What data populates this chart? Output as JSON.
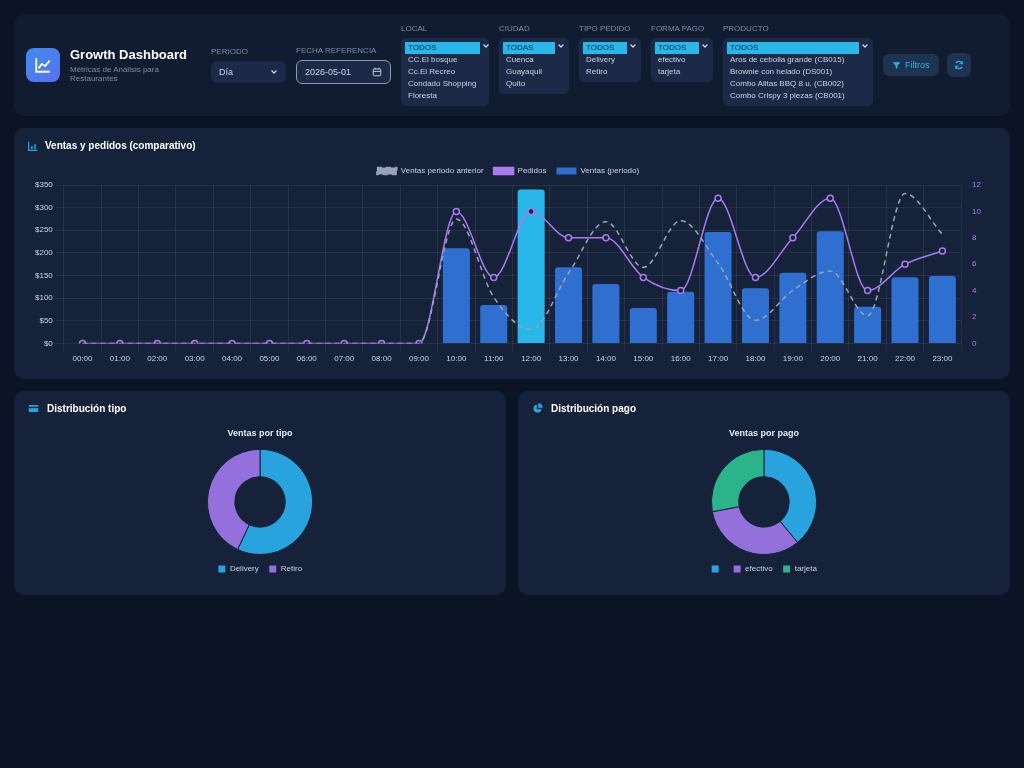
{
  "chart_data": [
    {
      "type": "other",
      "title": "Growth Dashboard",
      "subtitle": "Métricas de Análisis para Restaurantes"
    },
    {
      "type": "other",
      "title": "PERIODO",
      "annotations": [
        "Día"
      ]
    },
    {
      "type": "other",
      "title": "FECHA REFERENCIA",
      "annotations": [
        "2026-05-01"
      ]
    },
    {
      "type": "other",
      "title": "LOCAL",
      "annotations": [
        "TODOS",
        "CC.El bosque",
        "Cc.El Recreo",
        "Condado Shopping",
        "Floresta"
      ]
    },
    {
      "type": "other",
      "title": "CIUDAD",
      "annotations": [
        "TODAS",
        "Cuenca",
        "Guayaquil",
        "Quito"
      ]
    },
    {
      "type": "other",
      "title": "TIPO PEDIDO",
      "annotations": [
        "TODOS",
        "Delivery",
        "Retiro"
      ]
    },
    {
      "type": "other",
      "title": "FORMA PAGO",
      "annotations": [
        "TODOS",
        "efectivo",
        "tarjeta"
      ]
    },
    {
      "type": "other",
      "title": "PRODUCTO",
      "annotations": [
        "TODOS",
        "Aros de cebolla grande (CB015)",
        "Brownie con helado (DS001)",
        "Combo Alitas BBQ 8 u. (CB002)",
        "Combo Crispy 3 piezas (CB001)"
      ]
    },
    {
      "type": "other",
      "annotations": [
        "Filtros"
      ]
    },
    {
      "type": "bar",
      "title": "Ventas y pedidos (comparativo)",
      "categories": [
        "00:00",
        "01:00",
        "02:00",
        "03:00",
        "04:00",
        "05:00",
        "06:00",
        "07:00",
        "08:00",
        "09:00",
        "10:00",
        "11:00",
        "12:00",
        "13:00",
        "14:00",
        "15:00",
        "16:00",
        "17:00",
        "18:00",
        "19:00",
        "20:00",
        "21:00",
        "22:00",
        "23:00"
      ],
      "series": [
        {
          "name": "Ventas periodo anterior",
          "type": "line",
          "color": "#9aa3b5",
          "line_style": "dashed",
          "marker": "none",
          "values": [
            0,
            0,
            0,
            0,
            0,
            0,
            0,
            0,
            0,
            0,
            275,
            102,
            31,
            155,
            269,
            168,
            271,
            177,
            51,
            117,
            160,
            61,
            331,
            241
          ]
        },
        {
          "name": "Pedidos",
          "type": "line",
          "axis": "y2",
          "color": "#a67cf0",
          "line_style": "solid",
          "marker": "circle",
          "values": [
            0,
            0,
            0,
            0,
            0,
            0,
            0,
            0,
            0,
            0,
            10,
            5,
            10,
            8,
            8,
            5,
            4,
            11,
            5,
            8,
            11,
            4,
            6,
            7
          ]
        },
        {
          "name": "Ventas (periodo)",
          "type": "bar",
          "color": "#2f6fd0",
          "colors": [
            "#2f6fd0",
            "#2f6fd0",
            "#2f6fd0",
            "#2f6fd0",
            "#2f6fd0",
            "#2f6fd0",
            "#2f6fd0",
            "#2f6fd0",
            "#2f6fd0",
            "#2f6fd0",
            "#2f6fd0",
            "#2f6fd0",
            "#29b6e8",
            "#2f6fd0",
            "#2f6fd0",
            "#2f6fd0",
            "#2f6fd0",
            "#2f6fd0",
            "#2f6fd0",
            "#2f6fd0",
            "#2f6fd0",
            "#2f6fd0",
            "#2f6fd0",
            "#2f6fd0"
          ],
          "values": [
            0,
            0,
            0,
            0,
            0,
            0,
            0,
            0,
            0,
            0,
            210,
            85,
            340,
            168,
            131,
            78,
            114,
            246,
            122,
            156,
            248,
            81,
            146,
            149
          ]
        }
      ],
      "ylim": [
        0,
        350
      ],
      "yticks": [
        {
          "value": 0,
          "label": "$0"
        },
        {
          "value": 50,
          "label": "$50"
        },
        {
          "value": 100,
          "label": "$100"
        },
        {
          "value": 150,
          "label": "$150"
        },
        {
          "value": 200,
          "label": "$200"
        },
        {
          "value": 250,
          "label": "$250"
        },
        {
          "value": 300,
          "label": "$300"
        },
        {
          "value": 350,
          "label": "$350"
        }
      ],
      "y2lim": [
        0,
        12
      ],
      "y2ticks": [
        0,
        2,
        4,
        6,
        8,
        10,
        12
      ],
      "grid": true,
      "legend": "top"
    },
    {
      "type": "donut",
      "title": "Distribución tipo",
      "subtitle": "Ventas por tipo",
      "categories": [
        "Delivery",
        "Retiro"
      ],
      "values": [
        57,
        43
      ],
      "colors": [
        "#29a3dd",
        "#9370db"
      ],
      "legend": "bottom"
    },
    {
      "type": "donut",
      "title": "Distribución pago",
      "subtitle": "Ventas por pago",
      "categories": [
        null,
        "efectivo",
        "tarjeta"
      ],
      "values": [
        39,
        33,
        28
      ],
      "colors": [
        "#29a3dd",
        "#9370db",
        "#2bb389"
      ],
      "legend": "bottom"
    }
  ]
}
